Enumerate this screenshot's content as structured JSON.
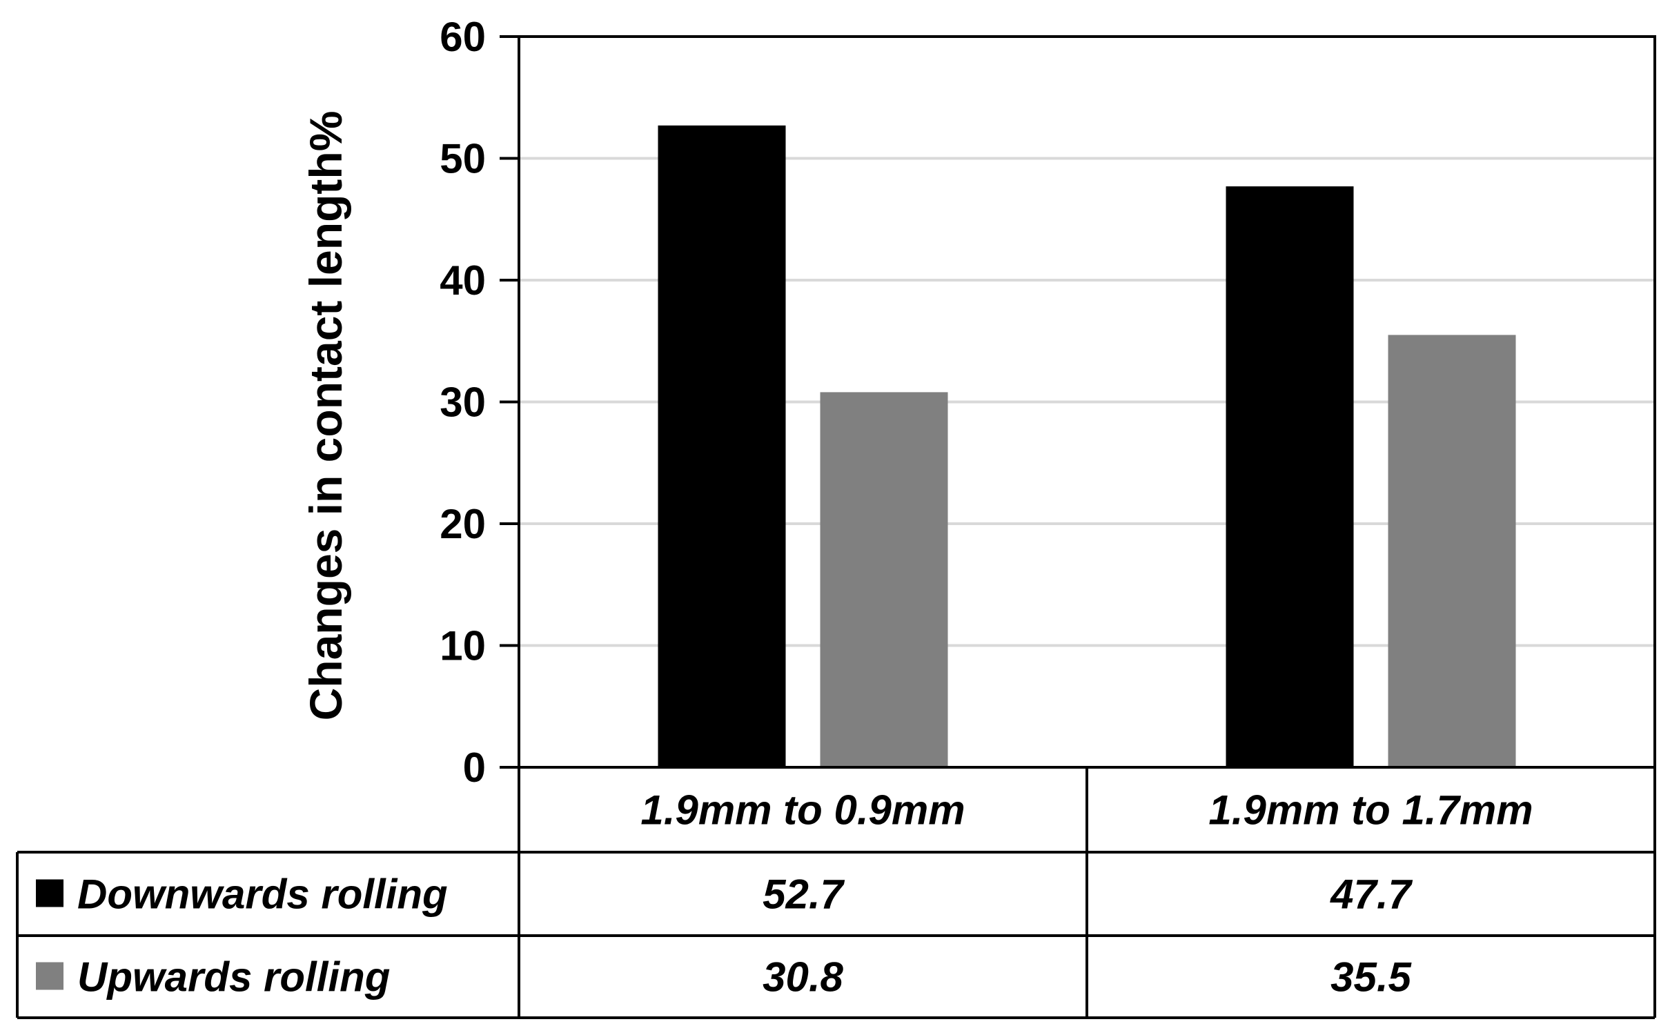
{
  "chart_data": {
    "type": "bar",
    "ylabel": "Changes in contact length%",
    "xlabel": "",
    "ylim": [
      0,
      60
    ],
    "yticks": [
      0,
      10,
      20,
      30,
      40,
      50,
      60
    ],
    "grid": true,
    "categories": [
      "1.9mm to 0.9mm",
      "1.9mm to 1.7mm"
    ],
    "series": [
      {
        "name": "Downwards rolling",
        "values": [
          52.7,
          47.7
        ],
        "color": "#000000",
        "value_labels": [
          "52.7",
          "47.7"
        ]
      },
      {
        "name": "Upwards rolling",
        "values": [
          30.8,
          35.5
        ],
        "color": "#808080",
        "value_labels": [
          "30.8",
          "35.5"
        ]
      }
    ],
    "legend": "data-table"
  }
}
